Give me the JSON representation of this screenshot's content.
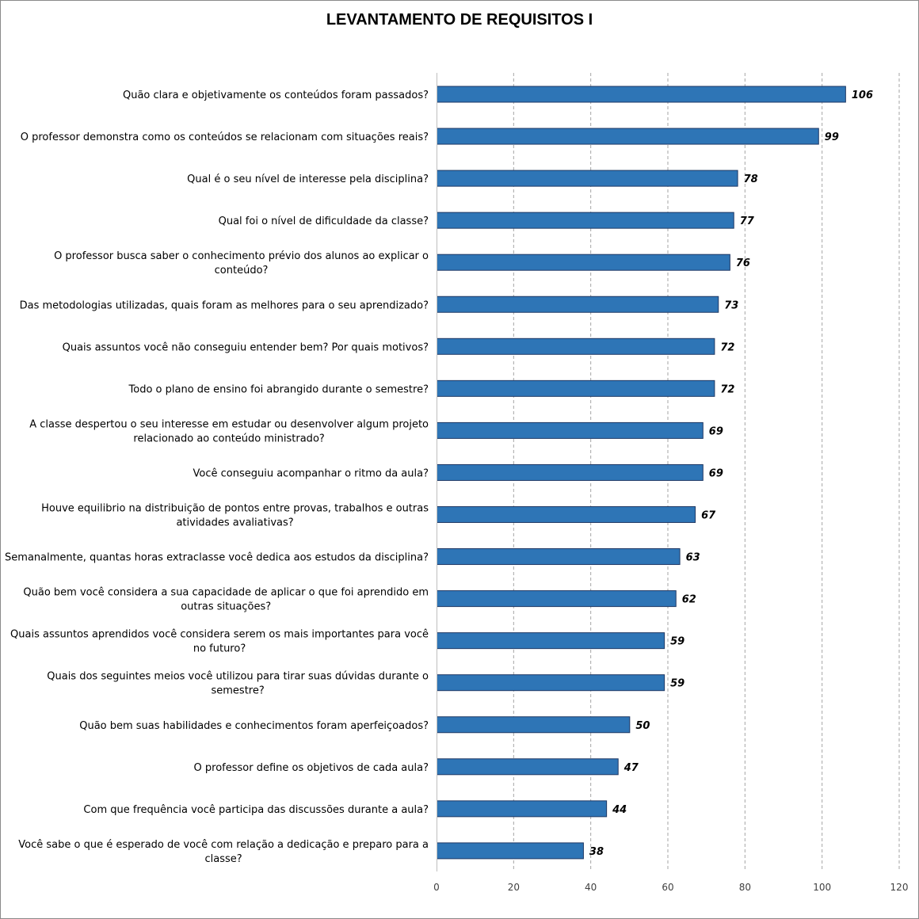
{
  "chart_data": {
    "type": "bar",
    "orientation": "horizontal",
    "title": "LEVANTAMENTO DE REQUISITOS I",
    "xlabel": "",
    "ylabel": "",
    "xlim": [
      0,
      120
    ],
    "ticks": [
      "0",
      "20",
      "40",
      "60",
      "80",
      "100",
      "120"
    ],
    "grid": "vertical dashed",
    "legend": "none",
    "bar_color": "#2E75B6",
    "bar_edge_color": "#1F3864",
    "categories": [
      [
        "Quão clara e objetivamente os conteúdos foram passados?"
      ],
      [
        "O professor demonstra como os conteúdos se relacionam com situações reais?"
      ],
      [
        "Qual é o seu nível de interesse pela disciplina?"
      ],
      [
        "Qual foi o nível de dificuldade da classe?"
      ],
      [
        "O professor busca saber o conhecimento prévio dos alunos ao explicar o",
        "conteúdo?"
      ],
      [
        "Das metodologias utilizadas, quais foram as melhores para o seu aprendizado?"
      ],
      [
        "Quais assuntos você não conseguiu entender bem? Por quais motivos?"
      ],
      [
        "Todo o plano de ensino foi abrangido durante o semestre?"
      ],
      [
        "A classe despertou o seu interesse em estudar ou desenvolver algum projeto",
        "relacionado ao conteúdo ministrado?"
      ],
      [
        "Você conseguiu acompanhar o ritmo da aula?"
      ],
      [
        "Houve equilibrio na distribuição de pontos entre provas, trabalhos e outras",
        "atividades avaliativas?"
      ],
      [
        "Semanalmente, quantas horas extraclasse você dedica aos estudos da disciplina?"
      ],
      [
        "Quão bem você considera a sua capacidade de aplicar o que foi aprendido em",
        "outras situações?"
      ],
      [
        "Quais assuntos aprendidos você considera serem os mais importantes para você",
        "no futuro?"
      ],
      [
        "Quais dos seguintes meios você utilizou para tirar suas dúvidas durante o",
        "semestre?"
      ],
      [
        "Quão bem suas habilidades e conhecimentos foram aperfeiçoados?"
      ],
      [
        "O professor define os objetivos de cada aula?"
      ],
      [
        "Com que frequência você participa das discussões durante a aula?"
      ],
      [
        "Você sabe o que é esperado de você com relação a dedicação e preparo para a",
        "classe?"
      ]
    ],
    "values": [
      106,
      99,
      78,
      77,
      76,
      73,
      72,
      72,
      69,
      69,
      67,
      63,
      62,
      59,
      59,
      50,
      47,
      44,
      38
    ]
  }
}
